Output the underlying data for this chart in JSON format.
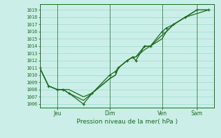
{
  "background_color": "#cceee8",
  "grid_color": "#99ddcc",
  "line_color": "#1a6b1a",
  "title": "Pression niveau de la mer( hPa )",
  "ylabel_values": [
    1006,
    1007,
    1008,
    1009,
    1010,
    1011,
    1012,
    1013,
    1014,
    1015,
    1016,
    1017,
    1018,
    1019
  ],
  "ylim": [
    1005.5,
    1019.8
  ],
  "x_tick_labels": [
    "Jeu",
    "Dim",
    "Ven",
    "Sam"
  ],
  "x_tick_positions": [
    12,
    48,
    84,
    108
  ],
  "xlim": [
    0,
    120
  ],
  "series1_x": [
    0,
    6,
    12,
    16,
    20,
    30,
    36,
    48,
    52,
    54,
    60,
    64,
    66,
    72,
    76,
    84,
    87,
    92,
    100,
    108,
    116
  ],
  "series1_y": [
    1011,
    1008.5,
    1008,
    1008,
    1007.5,
    1006.0,
    1007.5,
    1010.0,
    1010.5,
    1011,
    1012,
    1012.5,
    1012.0,
    1014.0,
    1014.0,
    1016.0,
    1016.5,
    1017.0,
    1018.0,
    1019.0,
    1019.0
  ],
  "series2_x": [
    0,
    6,
    12,
    16,
    20,
    30,
    36,
    48,
    52,
    54,
    60,
    64,
    66,
    72,
    76,
    84,
    87,
    92,
    100,
    108,
    116
  ],
  "series2_y": [
    1011,
    1008.5,
    1008,
    1008,
    1008.0,
    1007.0,
    1007.5,
    1009.5,
    1010.0,
    1011,
    1012,
    1012.5,
    1012.5,
    1013.5,
    1014.0,
    1015.0,
    1016.0,
    1017.0,
    1018.0,
    1018.5,
    1019.0
  ],
  "series3_x": [
    0,
    6,
    12,
    16,
    20,
    30,
    36,
    48,
    52,
    54,
    60,
    64,
    66,
    72,
    76,
    84,
    87,
    92,
    100,
    108,
    116
  ],
  "series3_y": [
    1011,
    1008.5,
    1008,
    1008,
    1007.5,
    1006.5,
    1007.5,
    1009.5,
    1010.0,
    1011,
    1012,
    1012.5,
    1012.5,
    1014.0,
    1014.0,
    1015.5,
    1016.0,
    1017.0,
    1018.0,
    1019.0,
    1019.0
  ]
}
